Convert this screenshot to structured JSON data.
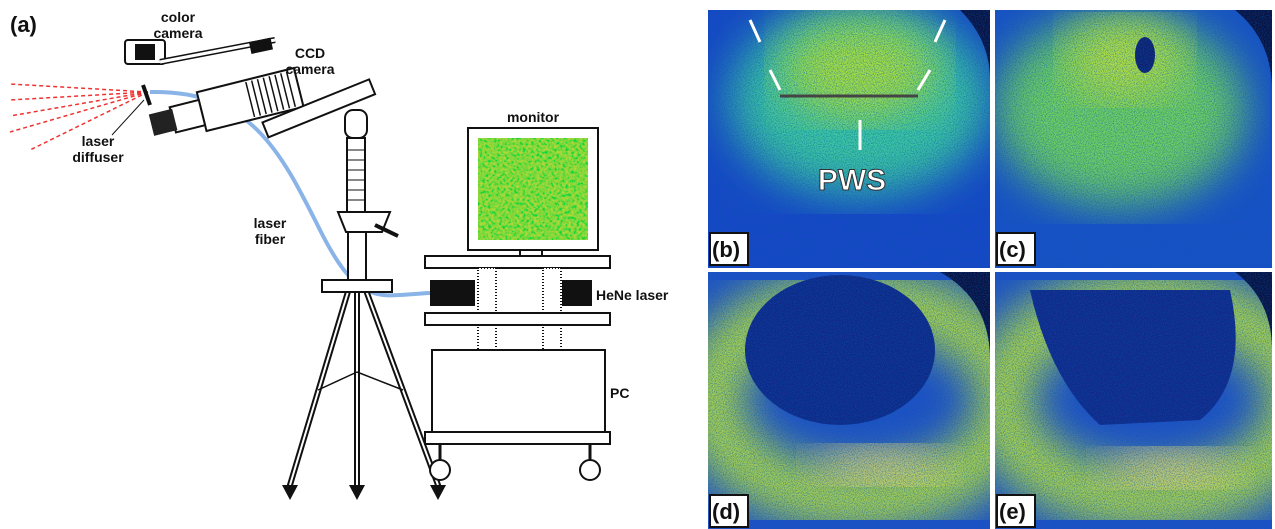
{
  "panel_a": {
    "label": "(a)",
    "labels": {
      "color_camera": [
        "color",
        "camera"
      ],
      "ccd_camera": [
        "CCD",
        "camera"
      ],
      "laser_diffuser": [
        "laser",
        "diffuser"
      ],
      "laser_fiber": [
        "laser",
        "fiber"
      ],
      "monitor": "monitor",
      "hene_laser": "HeNe laser",
      "pc": "PC"
    }
  },
  "panels": [
    {
      "label": "(b)"
    },
    {
      "label": "(c)"
    },
    {
      "label": "(d)"
    },
    {
      "label": "(e)"
    }
  ],
  "annotation": "PWS"
}
